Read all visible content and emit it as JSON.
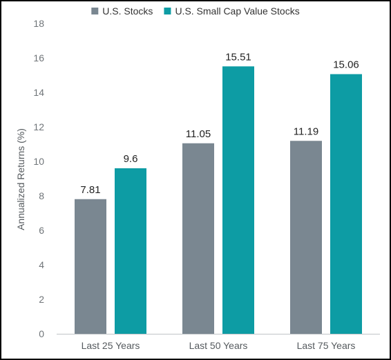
{
  "chart_data": {
    "type": "bar",
    "title": "",
    "xlabel": "",
    "ylabel": "Annualized Returns (%)",
    "ylim": [
      0,
      18
    ],
    "yticks": [
      0,
      2,
      4,
      6,
      8,
      10,
      12,
      14,
      16,
      18
    ],
    "grid": false,
    "legend_position": "top-center",
    "categories": [
      "Last 25 Years",
      "Last 50 Years",
      "Last 75 Years"
    ],
    "series": [
      {
        "name": "U.S. Stocks",
        "color": "#7a8791",
        "values": [
          7.81,
          11.05,
          11.19
        ],
        "labels": [
          "7.81",
          "11.05",
          "11.19"
        ]
      },
      {
        "name": "U.S. Small Cap Value Stocks",
        "color": "#0d9ca4",
        "values": [
          9.6,
          15.51,
          15.06
        ],
        "labels": [
          "9.6",
          "15.51",
          "15.06"
        ]
      }
    ],
    "axis_color": "#bfc3c6"
  }
}
